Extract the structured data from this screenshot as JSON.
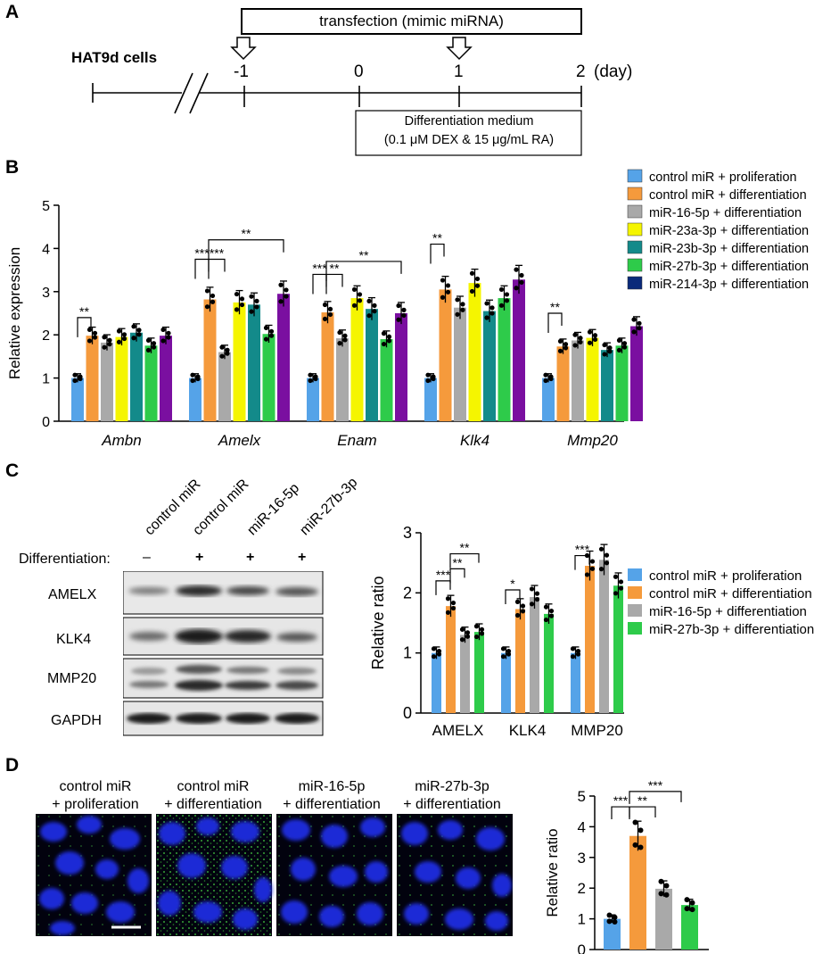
{
  "panels": {
    "a": "A",
    "b": "B",
    "c": "C",
    "d": "D"
  },
  "panelA": {
    "transfection": "transfection (mimic miRNA)",
    "cells": "HAT9d cells",
    "ticks": [
      "-1",
      "0",
      "1",
      "2"
    ],
    "unit": "(day)",
    "medium_line1": "Differentiation medium",
    "medium_line2": "(0.1 μM DEX & 15 μg/mL RA)"
  },
  "panelB": {
    "legend": [
      {
        "name": "control miR + proliferation",
        "color": "#55a3e8"
      },
      {
        "name": "control miR + differentiation",
        "color": "#f59a3c"
      },
      {
        "name": "miR-16-5p + differentiation",
        "color": "#a9a9a9"
      },
      {
        "name": "miR-23a-3p + differentiation",
        "color": "#f5f500"
      },
      {
        "name": "miR-23b-3p + differentiation",
        "color": "#138a8a"
      },
      {
        "name": "miR-27b-3p + differentiation",
        "color": "#2ecb4a"
      },
      {
        "name": "miR-214-3p + differentiation",
        "color": "#0a2a7a"
      }
    ]
  },
  "panelC": {
    "lanes": [
      "control miR",
      "control miR",
      "miR-16-5p",
      "miR-27b-3p"
    ],
    "diff_label": "Differentiation:",
    "diff_signs": [
      "–",
      "+",
      "+",
      "+"
    ],
    "proteins": [
      "AMELX",
      "KLK4",
      "MMP20",
      "GAPDH"
    ],
    "legend": [
      {
        "name": "control miR + proliferation",
        "color": "#55a3e8"
      },
      {
        "name": "control miR + differentiation",
        "color": "#f59a3c"
      },
      {
        "name": "miR-16-5p + differentiation",
        "color": "#a9a9a9"
      },
      {
        "name": "miR-27b-3p + differentiation",
        "color": "#2ecb4a"
      }
    ]
  },
  "panelD": {
    "captions": [
      [
        "control miR",
        "+ proliferation"
      ],
      [
        "control miR",
        "+ differentiation"
      ],
      [
        "miR-16-5p",
        "+ differentiation"
      ],
      [
        "miR-27b-3p",
        "+ differentiation"
      ]
    ]
  },
  "chart_data": [
    {
      "id": "B",
      "type": "bar",
      "ylabel": "Relative expression",
      "ylim": [
        0,
        5
      ],
      "yticks": [
        "0",
        "1",
        "2",
        "3",
        "4",
        "5"
      ],
      "categories": [
        "Ambn",
        "Amelx",
        "Enam",
        "Klk4",
        "Mmp20"
      ],
      "series": [
        {
          "name": "control miR + proliferation",
          "values": [
            1.0,
            1.0,
            1.0,
            1.0,
            1.0
          ]
        },
        {
          "name": "control miR + differentiation",
          "values": [
            1.98,
            2.82,
            2.52,
            3.05,
            1.73
          ]
        },
        {
          "name": "miR-16-5p + differentiation",
          "values": [
            1.82,
            1.6,
            1.92,
            2.63,
            1.87
          ]
        },
        {
          "name": "miR-23a-3p + differentiation",
          "values": [
            1.95,
            2.75,
            2.85,
            3.2,
            1.93
          ]
        },
        {
          "name": "miR-23b-3p + differentiation",
          "values": [
            2.05,
            2.7,
            2.6,
            2.55,
            1.65
          ]
        },
        {
          "name": "miR-27b-3p + differentiation",
          "values": [
            1.75,
            2.02,
            1.9,
            2.85,
            1.75
          ]
        },
        {
          "name": "miR-214-3p + differentiation",
          "values": [
            1.98,
            2.95,
            2.5,
            3.28,
            2.2
          ]
        }
      ],
      "significance": [
        "**",
        "***",
        "***",
        "**",
        "***",
        "**",
        "**",
        "**",
        "**"
      ]
    },
    {
      "id": "C",
      "type": "bar",
      "ylabel": "Relative ratio",
      "ylim": [
        0,
        3
      ],
      "yticks": [
        "0",
        "1",
        "2",
        "3"
      ],
      "categories": [
        "AMELX",
        "KLK4",
        "MMP20"
      ],
      "series": [
        {
          "name": "control miR + proliferation",
          "values": [
            1.0,
            1.0,
            1.0
          ]
        },
        {
          "name": "control miR + differentiation",
          "values": [
            1.78,
            1.73,
            2.45
          ]
        },
        {
          "name": "miR-16-5p + differentiation",
          "values": [
            1.3,
            1.93,
            2.55
          ]
        },
        {
          "name": "miR-27b-3p + differentiation",
          "values": [
            1.35,
            1.65,
            2.12
          ]
        }
      ],
      "significance": [
        "***",
        "**",
        "**",
        "*",
        "***"
      ]
    },
    {
      "id": "D",
      "type": "bar",
      "ylabel": "Relative ratio",
      "ylim": [
        0,
        5
      ],
      "yticks": [
        "0",
        "1",
        "2",
        "3",
        "4",
        "5"
      ],
      "categories": [
        "control miR + proliferation",
        "control miR + differentiation",
        "miR-16-5p + differentiation",
        "miR-27b-3p + differentiation"
      ],
      "values": [
        1.0,
        3.7,
        1.98,
        1.45
      ],
      "significance": [
        "***",
        "**",
        "***"
      ]
    }
  ]
}
